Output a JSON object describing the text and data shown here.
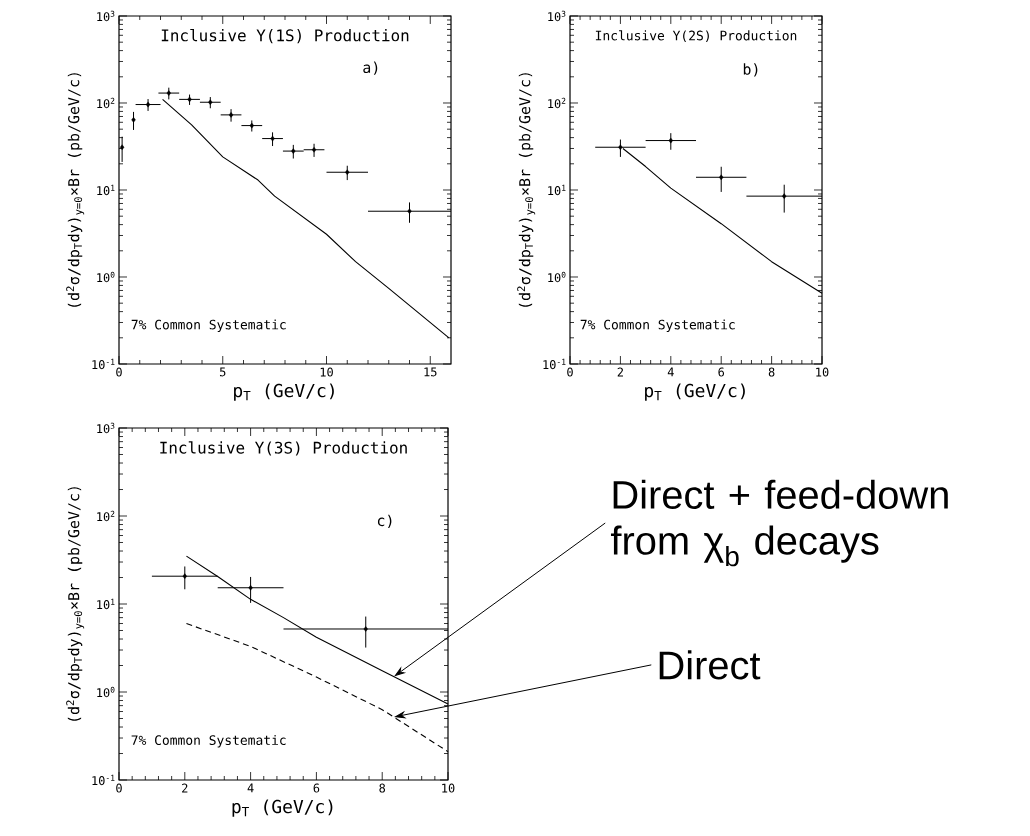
{
  "chart_data": [
    {
      "type": "scatter",
      "title": "Inclusive Υ(1S) Production",
      "xlabel": "p$_{T}$ (GeV/c)",
      "ylabel": "(d$^{2}$σ/dp$_{T}$dy)$_{y=0}$×Br (pb/GeV/c)",
      "annotations": [
        "a)",
        "7% Common Systematic"
      ],
      "log": "y",
      "xlim": [
        0,
        16
      ],
      "xticks": [
        0,
        5,
        10,
        15
      ],
      "ylim": [
        0.1,
        1000
      ],
      "yticks": [
        {
          "value": 0.1,
          "label": "10$^{-1}$"
        },
        {
          "value": 1,
          "label": "10$^{0}$"
        },
        {
          "value": 10,
          "label": "10$^{1}$"
        },
        {
          "value": 100,
          "label": "10$^{2}$"
        },
        {
          "value": 1000,
          "label": "10$^{3}$"
        }
      ],
      "series": [
        {
          "type": "scatter",
          "color": "#000000",
          "marker": "diamond",
          "x": [
            0.15,
            0.7,
            1.4,
            2.4,
            3.4,
            4.4,
            5.4,
            6.4,
            7.4,
            8.4,
            9.4,
            11,
            14
          ],
          "values": [
            31,
            64,
            96,
            130,
            110,
            102,
            73,
            55,
            39,
            28,
            29,
            16,
            5.7
          ],
          "errors": [
            10,
            15,
            15,
            20,
            15,
            15,
            12,
            8,
            7,
            5,
            5,
            3,
            1.5
          ],
          "xerrors": [
            null,
            null,
            0.6,
            0.5,
            0.5,
            0.5,
            0.5,
            0.5,
            0.5,
            0.5,
            0.5,
            1,
            2
          ]
        },
        {
          "type": "line",
          "color": "#000000",
          "marker": "none",
          "line_style": "solid",
          "x": [
            2.1,
            3.5,
            5,
            6.7,
            7.5,
            10,
            11.4,
            13,
            15.9
          ],
          "values": [
            110,
            56,
            24,
            13,
            8.5,
            3.1,
            1.5,
            0.74,
            0.2
          ]
        }
      ]
    },
    {
      "type": "scatter",
      "title": "Inclusive Υ(2S) Production",
      "xlabel": "p$_{T}$ (GeV/c)",
      "ylabel": "(d$^{2}$σ/dp$_{T}$dy)$_{y=0}$×Br (pb/GeV/c)",
      "annotations": [
        "b)",
        "7% Common Systematic"
      ],
      "log": "y",
      "xlim": [
        0,
        10
      ],
      "xticks": [
        0,
        2,
        4,
        6,
        8,
        10
      ],
      "ylim": [
        0.1,
        1000
      ],
      "yticks": [
        {
          "value": 0.1,
          "label": "10$^{-1}$"
        },
        {
          "value": 1,
          "label": "10$^{0}$"
        },
        {
          "value": 10,
          "label": "10$^{1}$"
        },
        {
          "value": 100,
          "label": "10$^{2}$"
        },
        {
          "value": 1000,
          "label": "10$^{3}$"
        }
      ],
      "series": [
        {
          "type": "scatter",
          "color": "#000000",
          "marker": "diamond",
          "x": [
            2,
            4,
            6,
            8.5
          ],
          "values": [
            31,
            37,
            14,
            8.5
          ],
          "errors": [
            7,
            8,
            4.5,
            3
          ],
          "xerrors": [
            1,
            1,
            1,
            1.5
          ]
        },
        {
          "type": "line",
          "color": "#000000",
          "marker": "none",
          "line_style": "solid",
          "x": [
            2.1,
            3,
            4,
            6,
            8,
            10
          ],
          "values": [
            30,
            18.6,
            10.5,
            4.1,
            1.5,
            0.65
          ]
        }
      ]
    },
    {
      "type": "scatter",
      "title": "Inclusive Υ(3S) Production",
      "xlabel": "p$_{T}$ (GeV/c)",
      "ylabel": "(d$^{2}$σ/dp$_{T}$dy)$_{y=0}$×Br (pb/GeV/c)",
      "annotations": [
        "c)",
        "7% Common Systematic",
        {
          "text": "Direct + feed-down from χ$_{b}$ decays",
          "x": 8.36,
          "y": 1.5
        },
        {
          "text": "Direct",
          "x": 8.36,
          "y": 0.52
        }
      ],
      "log": "y",
      "xlim": [
        0,
        10
      ],
      "xticks": [
        0,
        2,
        4,
        6,
        8,
        10
      ],
      "ylim": [
        0.1,
        1000
      ],
      "yticks": [
        {
          "value": 0.1,
          "label": "10$^{-1}$"
        },
        {
          "value": 1,
          "label": "10$^{0}$"
        },
        {
          "value": 10,
          "label": "10$^{1}$"
        },
        {
          "value": 100,
          "label": "10$^{2}$"
        },
        {
          "value": 1000,
          "label": "10$^{3}$"
        }
      ],
      "series": [
        {
          "type": "scatter",
          "color": "#000000",
          "marker": "diamond",
          "x": [
            2,
            4,
            7.5
          ],
          "values": [
            20.7,
            15.3,
            5.2
          ],
          "errors": [
            6,
            5,
            2
          ],
          "xerrors": [
            1,
            1,
            2.5
          ]
        },
        {
          "type": "line",
          "color": "#000000",
          "marker": "none",
          "line_style": "solid",
          "x": [
            2.05,
            3,
            4,
            5,
            6,
            8,
            10
          ],
          "values": [
            35,
            20.5,
            11.3,
            7,
            4.2,
            1.74,
            0.73
          ]
        },
        {
          "type": "line",
          "color": "#000000",
          "marker": "none",
          "line_style": "dashed",
          "x": [
            2.05,
            4,
            6,
            8,
            10
          ],
          "values": [
            6,
            3.3,
            1.48,
            0.63,
            0.21
          ]
        }
      ]
    }
  ]
}
